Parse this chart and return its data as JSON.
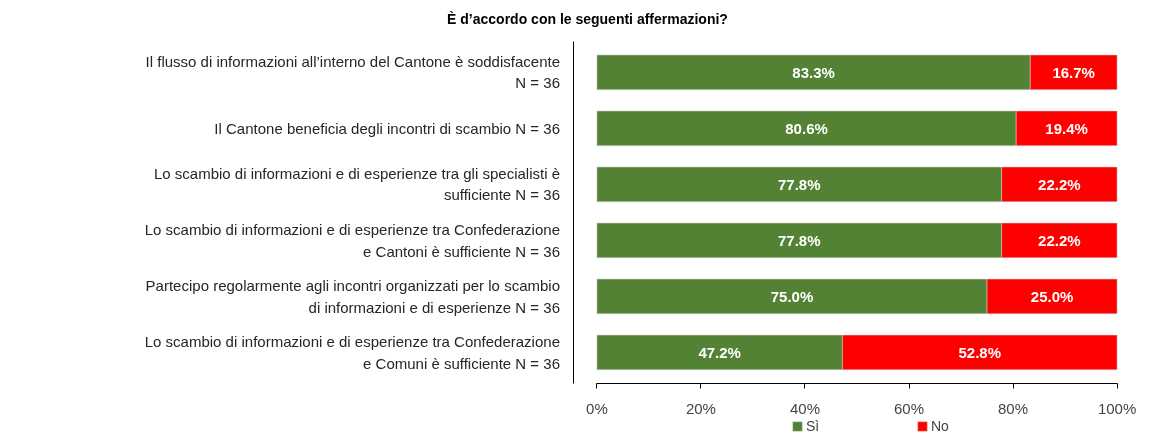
{
  "chart_data": {
    "type": "bar",
    "orientation": "horizontal",
    "stacked": true,
    "title": "È d’accordo con le seguenti affermazioni?",
    "categories": [
      "Il flusso di informazioni all’interno del Cantone è soddisfacente\nN = 36",
      "Il Cantone beneficia degli incontri di scambio N = 36",
      "Lo scambio di informazioni e di esperienze tra gli specialisti è\nsufficiente N = 36",
      "Lo scambio di informazioni e di esperienze tra Confederazione\ne Cantoni è sufficiente N = 36",
      "Partecipo regolarmente agli incontri organizzati per lo scambio\ndi informazioni e di esperienze N = 36",
      "Lo scambio di informazioni e di esperienze tra Confederazione\ne Comuni è sufficiente N = 36"
    ],
    "series": [
      {
        "name": "Sì",
        "color": "#548235",
        "values": [
          83.3,
          80.6,
          77.8,
          77.8,
          75.0,
          47.2
        ],
        "value_labels": [
          "83.3%",
          "80.6%",
          "77.8%",
          "77.8%",
          "75.0%",
          "47.2%"
        ]
      },
      {
        "name": "No",
        "color": "#ff0000",
        "values": [
          16.7,
          19.4,
          22.2,
          22.2,
          25.0,
          52.8
        ],
        "value_labels": [
          "16.7%",
          "19.4%",
          "22.2%",
          "22.2%",
          "25.0%",
          "52.8%"
        ]
      }
    ],
    "xlim": [
      0,
      100
    ],
    "xticks": [
      {
        "value": 0,
        "label": "0%"
      },
      {
        "value": 20,
        "label": "20%"
      },
      {
        "value": 40,
        "label": "40%"
      },
      {
        "value": 60,
        "label": "60%"
      },
      {
        "value": 80,
        "label": "80%"
      },
      {
        "value": 100,
        "label": "100%"
      }
    ],
    "grid": false,
    "legend": "bottom"
  }
}
